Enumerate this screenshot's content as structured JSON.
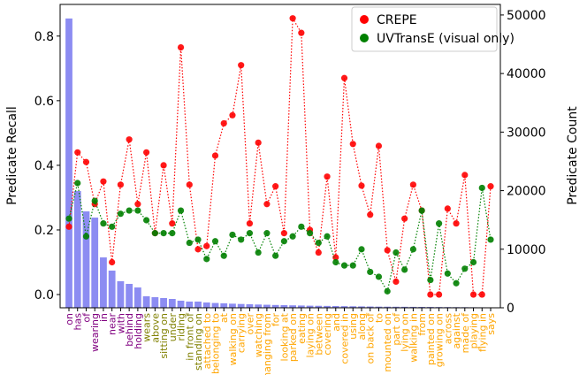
{
  "chart_data": {
    "type": "combo",
    "ylabel": "Predicate Recall",
    "y2label": "Predicate Count",
    "categories": [
      "on",
      "has",
      "of",
      "wearing",
      "in",
      "near",
      "with",
      "behind",
      "holding",
      "wears",
      "above",
      "sitting on",
      "under",
      "riding",
      "in front of",
      "standing on",
      "attached to",
      "belonging to",
      "at",
      "walking on",
      "carrying",
      "over",
      "watching",
      "hanging from",
      "for",
      "looking at",
      "parked on",
      "eating",
      "laying on",
      "between",
      "covering",
      "and",
      "covered in",
      "using",
      "along",
      "on back of",
      "to",
      "mounted on",
      "part of",
      "lying on",
      "walking in",
      "from",
      "painted on",
      "growing on",
      "across",
      "against",
      "made of",
      "playing",
      "flying in",
      "says"
    ],
    "tick_label_colors": [
      "#800080",
      "#800080",
      "#800080",
      "#800080",
      "#800080",
      "#800080",
      "#800080",
      "#800080",
      "#800080",
      "#808000",
      "#808000",
      "#808000",
      "#808000",
      "#808000",
      "#808000",
      "#808000",
      "#ffa500",
      "#ffa500",
      "#ffa500",
      "#ffa500",
      "#ffa500",
      "#ffa500",
      "#ffa500",
      "#ffa500",
      "#ffa500",
      "#ffa500",
      "#ffa500",
      "#ffa500",
      "#ffa500",
      "#ffa500",
      "#ffa500",
      "#ffa500",
      "#ffa500",
      "#ffa500",
      "#ffa500",
      "#ffa500",
      "#ffa500",
      "#ffa500",
      "#ffa500",
      "#ffa500",
      "#ffa500",
      "#ffa500",
      "#ffa500",
      "#ffa500",
      "#ffa500",
      "#ffa500",
      "#ffa500",
      "#ffa500",
      "#ffa500",
      "#ffa500"
    ],
    "series": [
      {
        "type": "bar",
        "axis": "y2",
        "color": "#8c8cf2",
        "values": [
          49400,
          19940,
          16460,
          15400,
          8600,
          6350,
          4530,
          4080,
          3470,
          1960,
          1810,
          1660,
          1510,
          1210,
          1060,
          1060,
          900,
          820,
          760,
          700,
          650,
          600,
          560,
          520,
          480,
          450,
          420,
          390,
          360,
          340,
          320,
          300,
          280,
          260,
          240,
          220,
          200,
          190,
          180,
          170,
          160,
          150,
          140,
          130,
          120,
          110,
          100,
          90,
          80,
          70
        ]
      },
      {
        "type": "line",
        "name": "CREPE",
        "color": "#ff0000",
        "values": [
          0.21,
          0.44,
          0.41,
          0.28,
          0.35,
          0.1,
          0.34,
          0.48,
          0.28,
          0.44,
          0.19,
          0.4,
          0.22,
          0.765,
          0.34,
          0.14,
          0.15,
          0.43,
          0.53,
          0.555,
          0.71,
          0.22,
          0.47,
          0.28,
          0.335,
          0.19,
          0.855,
          0.81,
          0.2,
          0.13,
          0.365,
          0.115,
          0.67,
          0.466,
          0.337,
          0.247,
          0.46,
          0.137,
          0.04,
          0.235,
          0.34,
          0.26,
          0.0,
          0.0,
          0.266,
          0.22,
          0.37,
          0.0,
          0.0,
          0.335
        ]
      },
      {
        "type": "line",
        "name": "UVTransE (visual only)",
        "color": "#008000",
        "values": [
          0.235,
          0.345,
          0.18,
          0.29,
          0.22,
          0.21,
          0.25,
          0.26,
          0.26,
          0.23,
          0.19,
          0.19,
          0.19,
          0.26,
          0.16,
          0.17,
          0.11,
          0.165,
          0.12,
          0.185,
          0.17,
          0.19,
          0.13,
          0.19,
          0.12,
          0.165,
          0.18,
          0.21,
          0.19,
          0.16,
          0.18,
          0.1,
          0.09,
          0.09,
          0.14,
          0.07,
          0.055,
          0.01,
          0.13,
          0.077,
          0.14,
          0.26,
          0.045,
          0.22,
          0.065,
          0.035,
          0.08,
          0.1,
          0.33,
          0.17
        ]
      }
    ],
    "ylim": [
      -0.041,
      0.898
    ],
    "yticks": [
      {
        "value": 0,
        "label": "0.0"
      },
      {
        "value": 0.2,
        "label": "0.2"
      },
      {
        "value": 0.4,
        "label": "0.4"
      },
      {
        "value": 0.6,
        "label": "0.6"
      },
      {
        "value": 0.8,
        "label": "0.8"
      }
    ],
    "y2lim": [
      0,
      51800
    ],
    "y2ticks": [
      0,
      10000,
      20000,
      30000,
      40000,
      50000
    ],
    "legend": "upper right"
  }
}
